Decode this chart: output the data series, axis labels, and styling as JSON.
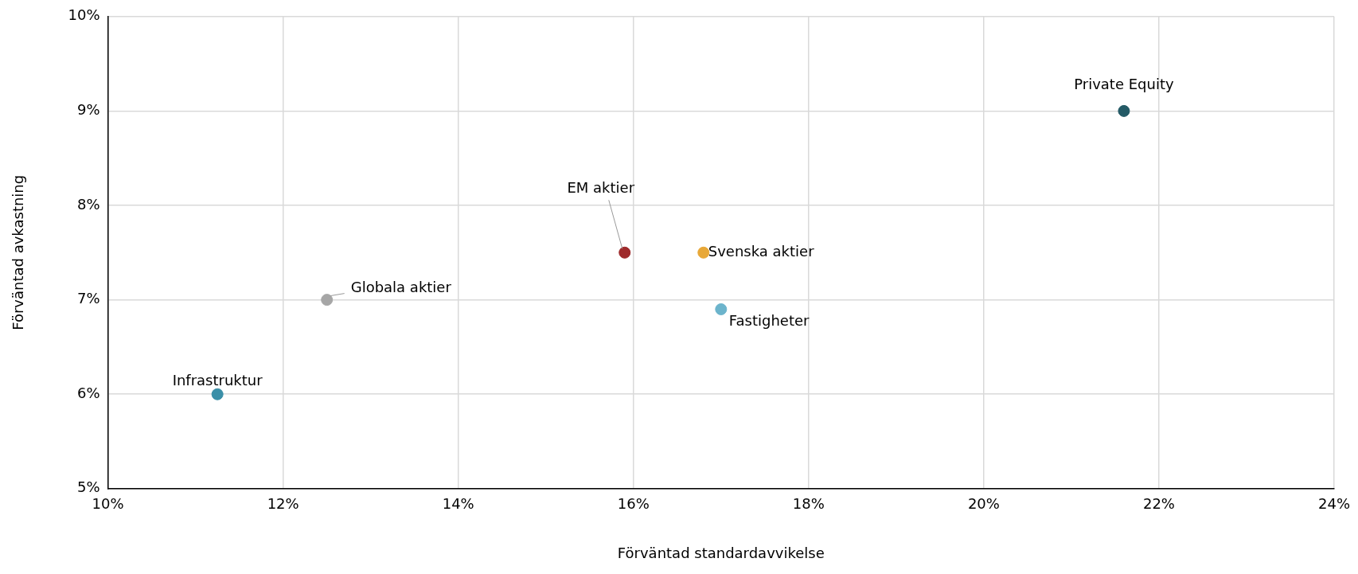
{
  "chart_data": {
    "type": "scatter",
    "xlabel": "Förväntad standardavvikelse",
    "ylabel": "Förväntad avkastning",
    "xlim": [
      10,
      24
    ],
    "ylim": [
      5,
      10
    ],
    "xticks": [
      {
        "value": 10,
        "label": "10%"
      },
      {
        "value": 12,
        "label": "12%"
      },
      {
        "value": 14,
        "label": "14%"
      },
      {
        "value": 16,
        "label": "16%"
      },
      {
        "value": 18,
        "label": "18%"
      },
      {
        "value": 20,
        "label": "20%"
      },
      {
        "value": 22,
        "label": "22%"
      },
      {
        "value": 24,
        "label": "24%"
      }
    ],
    "yticks": [
      {
        "value": 5,
        "label": "5%"
      },
      {
        "value": 6,
        "label": "6%"
      },
      {
        "value": 7,
        "label": "7%"
      },
      {
        "value": 8,
        "label": "8%"
      },
      {
        "value": 9,
        "label": "9%"
      },
      {
        "value": 10,
        "label": "10%"
      }
    ],
    "grid": true,
    "marker": "circle",
    "series": [
      {
        "name": "Infrastruktur",
        "color": "#3a8fa8",
        "x": [
          11.25
        ],
        "values": [
          6.0
        ]
      },
      {
        "name": "Globala aktier",
        "color": "#a6a6a6",
        "x": [
          12.5
        ],
        "values": [
          7.0
        ]
      },
      {
        "name": "EM aktier",
        "color": "#9e2a2b",
        "x": [
          15.9
        ],
        "values": [
          7.5
        ]
      },
      {
        "name": "Svenska aktier",
        "color": "#e8a838",
        "x": [
          16.8
        ],
        "values": [
          7.5
        ]
      },
      {
        "name": "Fastigheter",
        "color": "#6cb4cc",
        "x": [
          17.0
        ],
        "values": [
          6.9
        ]
      },
      {
        "name": "Private Equity",
        "color": "#245a66",
        "x": [
          21.6
        ],
        "values": [
          9.0
        ]
      }
    ]
  }
}
